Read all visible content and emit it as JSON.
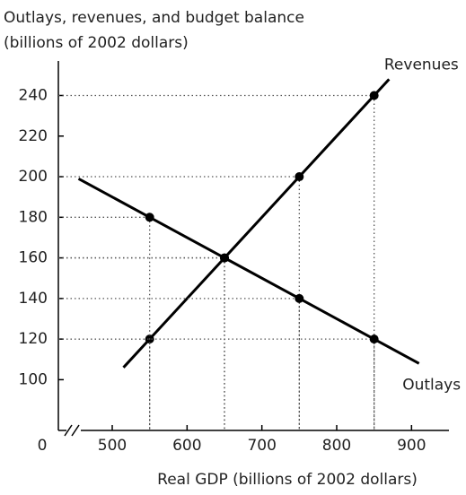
{
  "chart_data": {
    "type": "line",
    "title": "Outlays, revenues, and budget balance",
    "subtitle": "(billions of 2002 dollars)",
    "x_label": "Real GDP (billions of 2002 dollars)",
    "origin_label": "0",
    "series": [
      {
        "name": "Revenues",
        "color": "#000000",
        "x": [
          515,
          550,
          650,
          750,
          850,
          870
        ],
        "values": [
          106,
          120,
          160,
          200,
          240,
          248
        ]
      },
      {
        "name": "Outlays",
        "color": "#000000",
        "x": [
          455,
          550,
          650,
          750,
          850,
          910
        ],
        "values": [
          199,
          180,
          160,
          140,
          120,
          108
        ]
      }
    ],
    "xlim": [
      428,
      950
    ],
    "ylim": [
      75,
      257
    ],
    "xticks": [
      500,
      600,
      700,
      800,
      900
    ],
    "yticks": [
      100,
      120,
      140,
      160,
      180,
      200,
      220,
      240
    ]
  }
}
